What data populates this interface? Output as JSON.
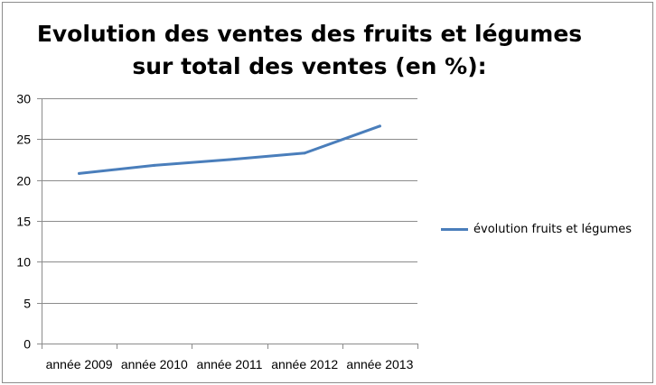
{
  "chart_data": {
    "type": "line",
    "title_lines": [
      "Evolution des ventes des fruits et légumes",
      "sur total des ventes (en %):"
    ],
    "xlabel": "",
    "ylabel": "",
    "categories": [
      "année 2009",
      "année 2010",
      "année 2011",
      "année 2012",
      "année 2013"
    ],
    "series": [
      {
        "name": "évolution fruits et légumes",
        "values": [
          20.8,
          21.8,
          22.5,
          23.3,
          26.6
        ],
        "color": "#4a7ebb"
      }
    ],
    "ylim": [
      0,
      30
    ],
    "yticks": [
      "0",
      "5",
      "10",
      "15",
      "20",
      "25",
      "30"
    ],
    "grid": "horizontal",
    "legend_position": "right"
  }
}
